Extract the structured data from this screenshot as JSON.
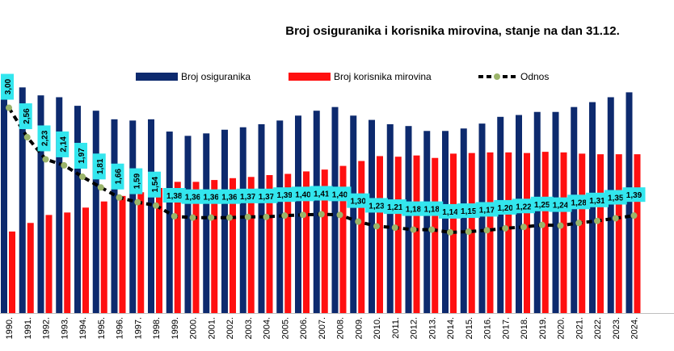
{
  "chart_data": {
    "type": "bar",
    "title": "Broj osiguranika i korisnika mirovina, stanje na dan 31.12.",
    "categories": [
      "1990.",
      "1991.",
      "1992.",
      "1993.",
      "1994.",
      "1995.",
      "1996.",
      "1997.",
      "1998.",
      "1999.",
      "2000.",
      "2001.",
      "2002.",
      "2003.",
      "2004.",
      "2005.",
      "2006.",
      "2007.",
      "2008.",
      "2009.",
      "2010.",
      "2011.",
      "2012.",
      "2013.",
      "2014.",
      "2015.",
      "2016.",
      "2017.",
      "2018.",
      "2019.",
      "2020.",
      "2021.",
      "2022.",
      "2023.",
      "2024."
    ],
    "series": [
      {
        "name": "Broj osiguranika",
        "kind": "bar",
        "color": "#0d2a6e",
        "values": [
          1930,
          1840,
          1775,
          1760,
          1690,
          1650,
          1580,
          1570,
          1580,
          1480,
          1445,
          1465,
          1495,
          1515,
          1540,
          1570,
          1610,
          1650,
          1680,
          1610,
          1575,
          1540,
          1525,
          1485,
          1485,
          1505,
          1545,
          1600,
          1615,
          1640,
          1640,
          1680,
          1720,
          1760,
          1800
        ]
      },
      {
        "name": "Broj korisnika mirovina",
        "kind": "bar",
        "color": "#ff1010",
        "values": [
          665,
          735,
          800,
          820,
          860,
          910,
          955,
          985,
          1020,
          1070,
          1070,
          1085,
          1100,
          1110,
          1125,
          1135,
          1155,
          1170,
          1200,
          1240,
          1280,
          1275,
          1285,
          1265,
          1300,
          1305,
          1310,
          1310,
          1305,
          1315,
          1310,
          1300,
          1295,
          1295,
          1295
        ]
      },
      {
        "name": "Odnos",
        "kind": "line",
        "color": "#000000",
        "marker_color": "#9bb46a",
        "values": [
          3.0,
          2.56,
          2.23,
          2.14,
          1.97,
          1.81,
          1.66,
          1.59,
          1.54,
          1.38,
          1.36,
          1.36,
          1.36,
          1.37,
          1.37,
          1.39,
          1.4,
          1.41,
          1.4,
          1.3,
          1.23,
          1.21,
          1.18,
          1.18,
          1.14,
          1.15,
          1.17,
          1.2,
          1.22,
          1.25,
          1.24,
          1.28,
          1.31,
          1.35,
          1.39
        ],
        "labels": [
          "3,00",
          "2,56",
          "2,23",
          "2,14",
          "1,97",
          "1,81",
          "1,66",
          "1,59",
          "1,54",
          "1,38",
          "1,36",
          "1,36",
          "1,36",
          "1,37",
          "1,37",
          "1,39",
          "1,40",
          "1,41",
          "1,40",
          "1,30",
          "1,23",
          "1,21",
          "1,18",
          "1,18",
          "1,14",
          "1,15",
          "1,17",
          "1,20",
          "1,22",
          "1,25",
          "1,24",
          "1,28",
          "1,31",
          "1,35",
          "1,39"
        ]
      }
    ],
    "legend": {
      "placement": "top",
      "labels": [
        "Broj osiguranika",
        "Broj korisnika mirovina",
        "Odnos"
      ]
    },
    "data_label_color": "#33e6ee",
    "grid": false
  }
}
